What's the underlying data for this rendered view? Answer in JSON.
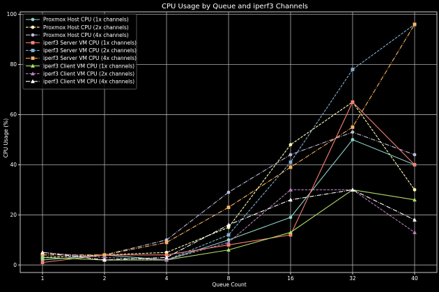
{
  "chart_data": {
    "type": "line",
    "title": "CPU Usage by Queue and iperf3 Channels",
    "xlabel": "Queue Count",
    "ylabel": "CPU Usage (%)",
    "categories": [
      "1",
      "2",
      "4",
      "8",
      "16",
      "32",
      "40"
    ],
    "y_ticks": [
      "0",
      "20",
      "40",
      "60",
      "80",
      "100"
    ],
    "ylim": [
      -3,
      101
    ],
    "grid": true,
    "legend_position": "top-left",
    "background": "#000000",
    "series": [
      {
        "name": "Proxmox Host CPU (1x channels)",
        "color": "#8dd3c7",
        "dash": "solid",
        "marker": "circle",
        "values": [
          2,
          4,
          2,
          10,
          19,
          50,
          40
        ]
      },
      {
        "name": "Proxmox Host CPU (2x channels)",
        "color": "#feffb3",
        "dash": "dash",
        "marker": "circle",
        "values": [
          3,
          4,
          5,
          15,
          48,
          65,
          30
        ]
      },
      {
        "name": "Proxmox Host CPU (4x channels)",
        "color": "#bfbbd9",
        "dash": "dashdot",
        "marker": "circle",
        "values": [
          4,
          4,
          10,
          29,
          44,
          53,
          44
        ]
      },
      {
        "name": "iperf3 Server VM CPU (1x channels)",
        "color": "#fa8174",
        "dash": "solid",
        "marker": "square",
        "values": [
          1,
          4,
          4,
          8,
          12,
          65,
          40
        ]
      },
      {
        "name": "iperf3 Server VM CPU (2x channels)",
        "color": "#81b1d2",
        "dash": "dash",
        "marker": "square",
        "values": [
          3,
          2,
          2,
          12,
          41,
          78,
          96
        ]
      },
      {
        "name": "iperf3 Server VM CPU (4x channels)",
        "color": "#fdb462",
        "dash": "dashdot",
        "marker": "square",
        "values": [
          4,
          4,
          9,
          23,
          39,
          55,
          96
        ]
      },
      {
        "name": "iperf3 Client VM CPU (1x channels)",
        "color": "#b3de69",
        "dash": "solid",
        "marker": "triangle",
        "values": [
          3,
          2,
          2,
          6,
          13,
          30,
          26
        ]
      },
      {
        "name": "iperf3 Client VM CPU (2x channels)",
        "color": "#bc82bd",
        "dash": "dash",
        "marker": "triangle",
        "values": [
          5,
          3,
          2,
          9,
          30,
          30,
          13
        ]
      },
      {
        "name": "iperf3 Client VM CPU (4x channels)",
        "color": "#ffffff",
        "dash": "dashdot",
        "marker": "triangle",
        "values": [
          5,
          2,
          3,
          16,
          26,
          30,
          18
        ]
      }
    ]
  }
}
